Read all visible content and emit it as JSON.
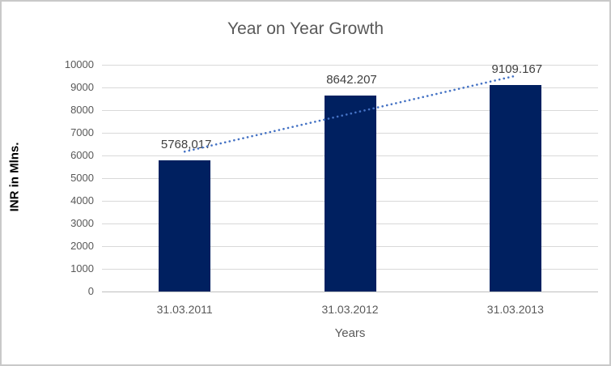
{
  "window": {
    "background": "#ffffff",
    "border_color": "#c9c9c9"
  },
  "chart_data": {
    "type": "bar",
    "title": "Year on Year Growth",
    "categories": [
      "31.03.2011",
      "31.03.2012",
      "31.03.2013"
    ],
    "values": [
      5768.017,
      8642.207,
      9109.167
    ],
    "data_labels": [
      "5768,017",
      "8642.207",
      "9109.167"
    ],
    "xlabel": "Years",
    "ylabel": "INR in Mlns.",
    "ylim": [
      0,
      10000
    ],
    "yticks": [
      0,
      1000,
      2000,
      3000,
      4000,
      5000,
      6000,
      7000,
      8000,
      9000,
      10000
    ],
    "grid": true,
    "legend": "none",
    "bar_color": "#002060",
    "gridline_color": "#d9d9d9",
    "axis_line_color": "#bfbfbf",
    "title_color": "#595959",
    "tick_label_color": "#595959",
    "data_label_color": "#404040",
    "trendline": {
      "type": "linear",
      "style": "dotted",
      "color": "#4472c4"
    }
  }
}
